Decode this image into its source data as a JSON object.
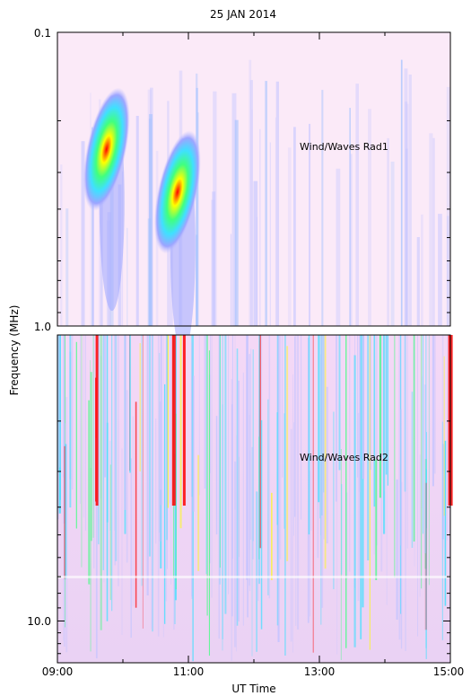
{
  "chart_data": {
    "type": "heatmap",
    "title": "25 JAN 2014",
    "xlabel": "UT Time",
    "ylabel": "Frequency (MHz)",
    "x_ticks": [
      "09:00",
      "11:00",
      "13:00",
      "15:00"
    ],
    "x_range": [
      "09:00",
      "15:00"
    ],
    "panels": [
      {
        "name": "Wind/Waves Rad1",
        "y_ticks": [
          "0.1",
          "1.0"
        ],
        "y_range_mhz": [
          0.1,
          1.0
        ],
        "y_scale": "log",
        "bursts": [
          {
            "center_time": "09:45",
            "peak_freq_mhz": 0.25,
            "intensity": "high"
          },
          {
            "center_time": "10:50",
            "peak_freq_mhz": 0.35,
            "intensity": "high"
          }
        ]
      },
      {
        "name": "Wind/Waves Rad2",
        "y_ticks": [
          "10.0"
        ],
        "y_range_mhz": [
          1.0,
          14.0
        ],
        "y_scale": "log"
      }
    ],
    "colormap": [
      "#ffe8f8",
      "#c4c4ff",
      "#40e0ff",
      "#40ff80",
      "#ffff00",
      "#ff0000"
    ]
  }
}
